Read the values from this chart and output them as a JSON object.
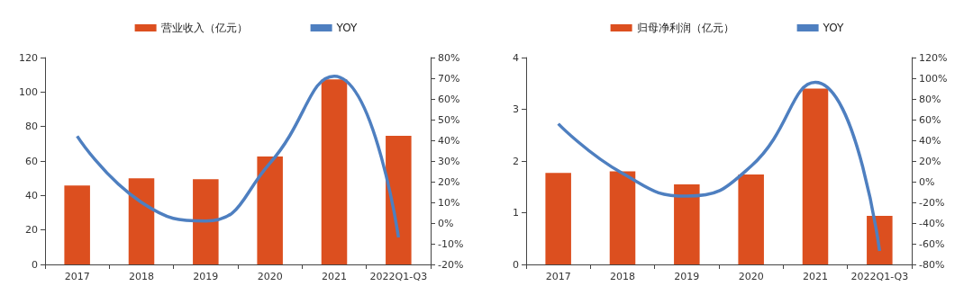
{
  "chart_data": [
    {
      "type": "bar",
      "categories": [
        "2017",
        "2018",
        "2019",
        "2020",
        "2021",
        "2022Q1-Q3"
      ],
      "series": [
        {
          "name": "营业收入（亿元）",
          "color": "#dc4f1f",
          "values": [
            45.8,
            49.9,
            49.4,
            62.6,
            107.4,
            74.6
          ]
        },
        {
          "name": "YOY",
          "type": "line",
          "axis": "y2",
          "color": "#4e7fc0",
          "values": [
            42,
            10,
            1,
            29,
            71,
            -7
          ]
        }
      ],
      "ylim": [
        0,
        120
      ],
      "yticks": [
        0,
        20,
        40,
        60,
        80,
        100,
        120
      ],
      "y2lim": [
        -20,
        80
      ],
      "y2ticks": [
        {
          "value": -20,
          "label": "-20%"
        },
        {
          "value": -10,
          "label": "-10%"
        },
        {
          "value": 0,
          "label": "0%"
        },
        {
          "value": 10,
          "label": "10%"
        },
        {
          "value": 20,
          "label": "20%"
        },
        {
          "value": 30,
          "label": "30%"
        },
        {
          "value": 40,
          "label": "40%"
        },
        {
          "value": 50,
          "label": "50%"
        },
        {
          "value": 60,
          "label": "60%"
        },
        {
          "value": 70,
          "label": "70%"
        },
        {
          "value": 80,
          "label": "80%"
        }
      ],
      "legend": "top",
      "grid": false,
      "marker": "none"
    },
    {
      "type": "bar",
      "categories": [
        "2017",
        "2018",
        "2019",
        "2020",
        "2021",
        "2022Q1-Q3"
      ],
      "series": [
        {
          "name": "归母净利润（亿元）",
          "color": "#dc4f1f",
          "values": [
            1.77,
            1.8,
            1.55,
            1.74,
            3.4,
            0.94
          ]
        },
        {
          "name": "YOY",
          "type": "line",
          "axis": "y2",
          "color": "#4e7fc0",
          "values": [
            56,
            8,
            -14,
            15,
            96,
            -67
          ]
        }
      ],
      "ylim": [
        0,
        4
      ],
      "yticks": [
        0,
        1,
        2,
        3,
        4
      ],
      "y2lim": [
        -80,
        120
      ],
      "y2ticks": [
        {
          "value": -80,
          "label": "-80%"
        },
        {
          "value": -60,
          "label": "-60%"
        },
        {
          "value": -40,
          "label": "-40%"
        },
        {
          "value": -20,
          "label": "-20%"
        },
        {
          "value": 0,
          "label": "0%"
        },
        {
          "value": 20,
          "label": "20%"
        },
        {
          "value": 40,
          "label": "40%"
        },
        {
          "value": 60,
          "label": "60%"
        },
        {
          "value": 80,
          "label": "80%"
        },
        {
          "value": 100,
          "label": "100%"
        },
        {
          "value": 120,
          "label": "120%"
        }
      ],
      "legend": "top",
      "grid": false,
      "marker": "none"
    }
  ]
}
